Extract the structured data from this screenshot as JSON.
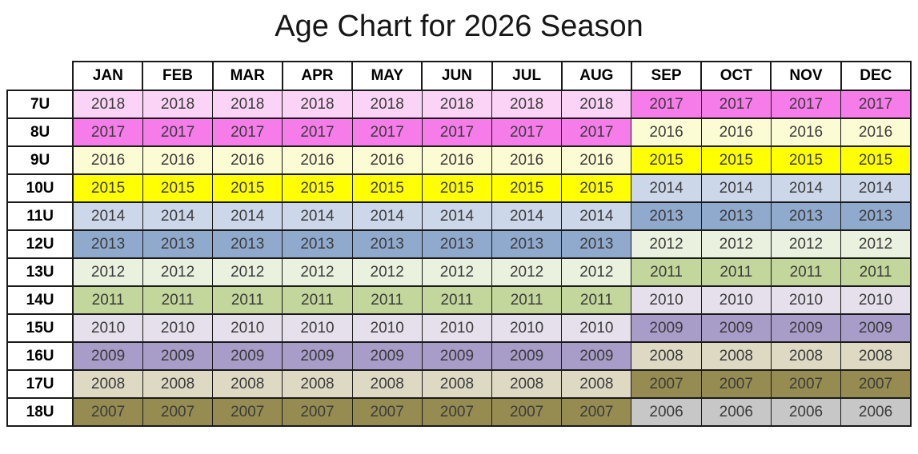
{
  "title": "Age Chart for 2026 Season",
  "chart_data": {
    "type": "table",
    "title": "Age Chart for 2026 Season",
    "columns": [
      "",
      "JAN",
      "FEB",
      "MAR",
      "APR",
      "MAY",
      "JUN",
      "JUL",
      "AUG",
      "SEP",
      "OCT",
      "NOV",
      "DEC"
    ],
    "rows": [
      [
        "7U",
        "2018",
        "2018",
        "2018",
        "2018",
        "2018",
        "2018",
        "2018",
        "2018",
        "2017",
        "2017",
        "2017",
        "2017"
      ],
      [
        "8U",
        "2017",
        "2017",
        "2017",
        "2017",
        "2017",
        "2017",
        "2017",
        "2017",
        "2016",
        "2016",
        "2016",
        "2016"
      ],
      [
        "9U",
        "2016",
        "2016",
        "2016",
        "2016",
        "2016",
        "2016",
        "2016",
        "2016",
        "2015",
        "2015",
        "2015",
        "2015"
      ],
      [
        "10U",
        "2015",
        "2015",
        "2015",
        "2015",
        "2015",
        "2015",
        "2015",
        "2015",
        "2014",
        "2014",
        "2014",
        "2014"
      ],
      [
        "11U",
        "2014",
        "2014",
        "2014",
        "2014",
        "2014",
        "2014",
        "2014",
        "2014",
        "2013",
        "2013",
        "2013",
        "2013"
      ],
      [
        "12U",
        "2013",
        "2013",
        "2013",
        "2013",
        "2013",
        "2013",
        "2013",
        "2013",
        "2012",
        "2012",
        "2012",
        "2012"
      ],
      [
        "13U",
        "2012",
        "2012",
        "2012",
        "2012",
        "2012",
        "2012",
        "2012",
        "2012",
        "2011",
        "2011",
        "2011",
        "2011"
      ],
      [
        "14U",
        "2011",
        "2011",
        "2011",
        "2011",
        "2011",
        "2011",
        "2011",
        "2011",
        "2010",
        "2010",
        "2010",
        "2010"
      ],
      [
        "15U",
        "2010",
        "2010",
        "2010",
        "2010",
        "2010",
        "2010",
        "2010",
        "2010",
        "2009",
        "2009",
        "2009",
        "2009"
      ],
      [
        "16U",
        "2009",
        "2009",
        "2009",
        "2009",
        "2009",
        "2009",
        "2009",
        "2009",
        "2008",
        "2008",
        "2008",
        "2008"
      ],
      [
        "17U",
        "2008",
        "2008",
        "2008",
        "2008",
        "2008",
        "2008",
        "2008",
        "2008",
        "2007",
        "2007",
        "2007",
        "2007"
      ],
      [
        "18U",
        "2007",
        "2007",
        "2007",
        "2007",
        "2007",
        "2007",
        "2007",
        "2007",
        "2006",
        "2006",
        "2006",
        "2006"
      ]
    ],
    "layout_hints": {
      "split_rule": "JAN-AUG one birth year, SEP-DEC previous birth year",
      "jan_aug_month_count": 8
    }
  },
  "colors": {
    "year_fills": {
      "2018": "#FAD3F6",
      "2017": "#F67CEA",
      "2016": "#FCFCD4",
      "2015": "#FFFF00",
      "2014": "#CDD7EA",
      "2013": "#90AACE",
      "2012": "#EAF1DE",
      "2011": "#C3D69B",
      "2010": "#E6E0ED",
      "2009": "#A89CC8",
      "2008": "#DDD9C3",
      "2007": "#968C52",
      "2006": "#C7C7C7"
    },
    "cell_text": "#3B3B3B",
    "header_text": "#000000",
    "grid_line": "#1A1A1A",
    "background": "#FFFFFF"
  }
}
